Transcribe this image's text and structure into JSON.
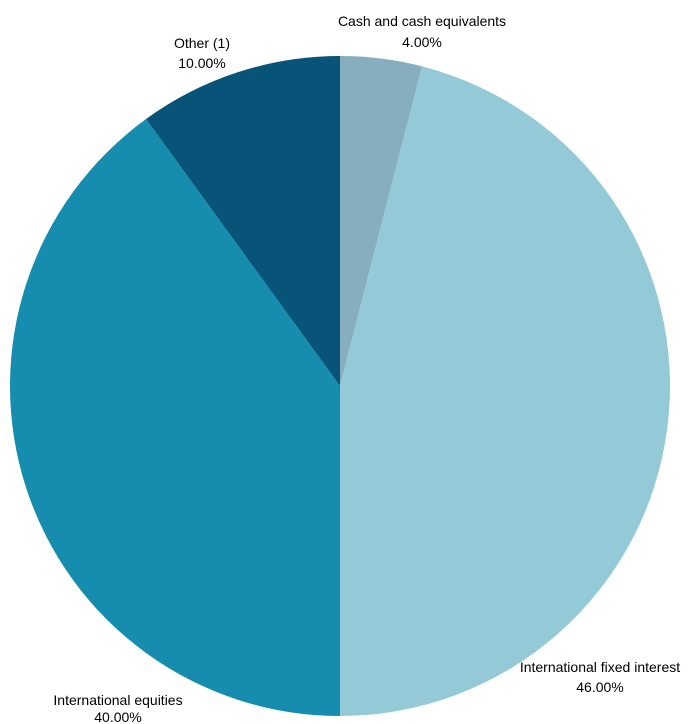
{
  "chart_data": {
    "type": "pie",
    "slices": [
      {
        "label": "Cash and cash equivalents",
        "value": 4.0,
        "value_label": "4.00%",
        "color": "#87aebe"
      },
      {
        "label": "International fixed interest",
        "value": 46.0,
        "value_label": "46.00%",
        "color": "#94cad8"
      },
      {
        "label": "International equities",
        "value": 40.0,
        "value_label": "40.00%",
        "color": "#168dae"
      },
      {
        "label": "Other (1)",
        "value": 10.0,
        "value_label": "10.00%",
        "color": "#085478"
      }
    ]
  }
}
